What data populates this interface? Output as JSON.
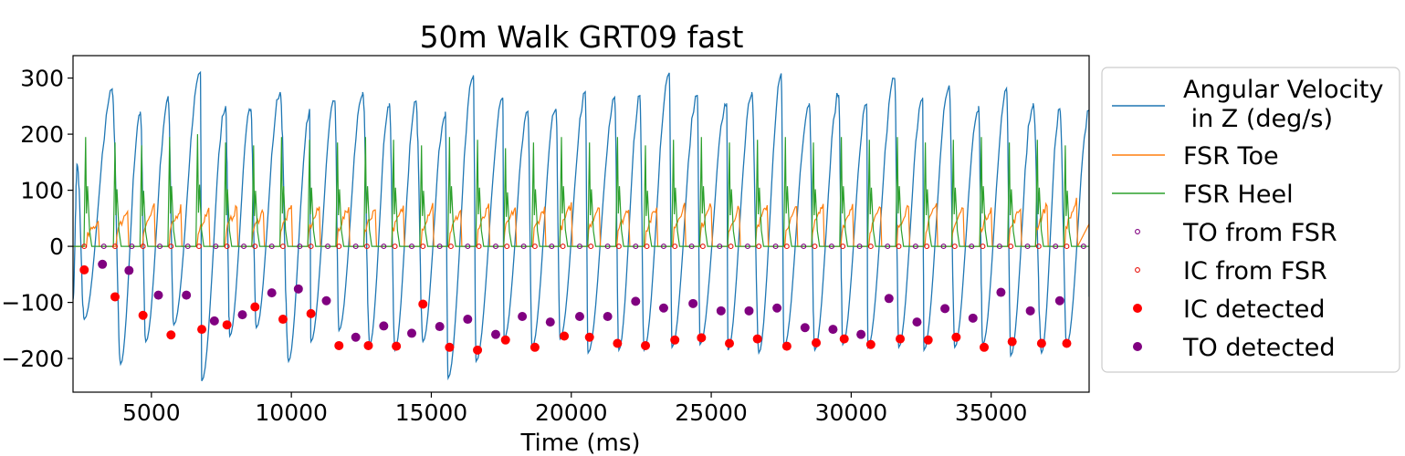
{
  "chart_data": {
    "type": "line",
    "title": "50m Walk GRT09 fast",
    "xlabel": "Time (ms)",
    "ylabel": "",
    "xlim": [
      2200,
      38500
    ],
    "ylim": [
      -260,
      340
    ],
    "xticks": [
      5000,
      10000,
      15000,
      20000,
      25000,
      30000,
      35000
    ],
    "xtick_labels": [
      "5000",
      "10000",
      "15000",
      "20000",
      "25000",
      "30000",
      "35000"
    ],
    "yticks": [
      -200,
      -100,
      0,
      100,
      200,
      300
    ],
    "ytick_labels": [
      "−200",
      "−100",
      "0",
      "100",
      "200",
      "300"
    ],
    "grid": false,
    "legend": {
      "placement": "outside-right",
      "entries": [
        "Angular Velocity\n in Z (deg/s)",
        "FSR Toe",
        "FSR Heel",
        "TO from FSR",
        "IC from FSR",
        "IC detected",
        "TO detected"
      ]
    },
    "series": [
      {
        "name": "Angular Velocity\n in Z (deg/s)",
        "kind": "line",
        "color": "#1f77b4",
        "peaks_x": [
          2350,
          3600,
          4600,
          5600,
          6750,
          7650,
          8550,
          9600,
          10650,
          11550,
          12550,
          13500,
          14450,
          15500,
          16500,
          17550,
          18450,
          19450,
          20500,
          21550,
          22450,
          23500,
          24500,
          25550,
          26450,
          27500,
          28500,
          29550,
          30550,
          31550,
          32550,
          33500,
          34550,
          35550,
          36500,
          37450,
          38500
        ],
        "peaks_y": [
          145,
          275,
          240,
          260,
          310,
          250,
          245,
          275,
          240,
          260,
          275,
          255,
          260,
          240,
          305,
          265,
          235,
          245,
          270,
          260,
          265,
          305,
          270,
          255,
          275,
          300,
          255,
          270,
          250,
          300,
          265,
          285,
          250,
          280,
          255,
          245,
          240
        ],
        "troughs_x": [
          2600,
          3900,
          4800,
          5800,
          6800,
          7800,
          8750,
          9900,
          10700,
          11700,
          12800,
          13700,
          14700,
          15600,
          16600,
          17600,
          18600,
          19600,
          20600,
          21700,
          22600,
          23600,
          24600,
          25600,
          26700,
          27600,
          28700,
          29700,
          30600,
          31700,
          32600,
          33700,
          34700,
          35700,
          36800,
          37700
        ],
        "troughs_y": [
          -130,
          -210,
          -170,
          -140,
          -240,
          -160,
          -145,
          -205,
          -170,
          -150,
          -175,
          -185,
          -170,
          -235,
          -205,
          -165,
          -180,
          -165,
          -190,
          -185,
          -185,
          -180,
          -175,
          -185,
          -190,
          -180,
          -185,
          -175,
          -180,
          -180,
          -185,
          -180,
          -175,
          -195,
          -190,
          -175
        ]
      },
      {
        "name": "FSR Toe",
        "kind": "line",
        "color": "#ff7f0e",
        "peaks_x": [
          3100,
          4150,
          5100,
          6050,
          7050,
          8050,
          9000,
          10000,
          11000,
          12050,
          13000,
          14000,
          15050,
          16050,
          17050,
          18000,
          19050,
          20000,
          21000,
          22050,
          23050,
          24050,
          25000,
          26000,
          27000,
          28050,
          29000,
          30050,
          31050,
          32050,
          33050,
          34000,
          35000,
          36050,
          37000,
          38050
        ],
        "peaks_y": [
          45,
          65,
          70,
          70,
          65,
          70,
          65,
          70,
          70,
          70,
          70,
          70,
          75,
          65,
          70,
          70,
          70,
          75,
          75,
          70,
          70,
          75,
          75,
          70,
          75,
          70,
          75,
          75,
          70,
          75,
          75,
          70,
          70,
          70,
          75,
          80
        ]
      },
      {
        "name": "FSR Heel",
        "kind": "line",
        "color": "#2ca02c",
        "spikes_x": [
          2650,
          3700,
          4650,
          5650,
          6650,
          7650,
          8650,
          9650,
          10650,
          11650,
          12650,
          13650,
          14650,
          15650,
          16650,
          17650,
          18650,
          19650,
          20650,
          21650,
          22650,
          23650,
          24650,
          25650,
          26650,
          27650,
          28650,
          29650,
          30650,
          31650,
          32650,
          33650,
          34650,
          35650,
          36650,
          37650
        ],
        "spikes_y": [
          195,
          185,
          180,
          195,
          200,
          185,
          180,
          195,
          190,
          185,
          195,
          190,
          180,
          195,
          190,
          175,
          185,
          195,
          185,
          195,
          180,
          190,
          195,
          185,
          190,
          195,
          185,
          195,
          190,
          195,
          185,
          190,
          195,
          185,
          190,
          180
        ]
      },
      {
        "name": "TO from FSR",
        "kind": "hollow-marker",
        "color": "#800080",
        "x": [
          3300,
          4300,
          5300,
          6300,
          7300,
          8300,
          9300,
          10300,
          11300,
          12300,
          13300,
          14300,
          15300,
          16300,
          17300,
          18300,
          19300,
          20300,
          21300,
          22300,
          23300,
          24300,
          25300,
          26300,
          27300,
          28300,
          29300,
          30300,
          31300,
          32300,
          33300,
          34300,
          35300,
          36300,
          37300,
          38300
        ],
        "y": [
          0,
          0,
          0,
          0,
          0,
          0,
          0,
          0,
          0,
          0,
          0,
          0,
          0,
          0,
          0,
          0,
          0,
          0,
          0,
          0,
          0,
          0,
          0,
          0,
          0,
          0,
          0,
          0,
          0,
          0,
          0,
          0,
          0,
          0,
          0,
          0
        ]
      },
      {
        "name": "IC from FSR",
        "kind": "hollow-marker",
        "color": "#e8120c",
        "x": [
          2600,
          3700,
          4700,
          5700,
          6700,
          7700,
          8700,
          9700,
          10700,
          11700,
          12700,
          13700,
          14700,
          15700,
          16700,
          17700,
          18700,
          19700,
          20700,
          21700,
          22700,
          23700,
          24700,
          25700,
          26700,
          27700,
          28700,
          29700,
          30700,
          31700,
          32700,
          33700,
          34700,
          35700,
          36700,
          37700
        ],
        "y": [
          0,
          0,
          0,
          0,
          0,
          0,
          0,
          0,
          0,
          0,
          0,
          0,
          0,
          0,
          0,
          0,
          0,
          0,
          0,
          0,
          0,
          0,
          0,
          0,
          0,
          0,
          0,
          0,
          0,
          0,
          0,
          0,
          0,
          0,
          0,
          0
        ]
      },
      {
        "name": "IC detected",
        "kind": "filled-marker",
        "color": "#ff0000",
        "x": [
          2600,
          3700,
          4700,
          5700,
          6800,
          7700,
          8700,
          9700,
          10700,
          11700,
          12750,
          13750,
          14700,
          15650,
          16650,
          17650,
          18700,
          19750,
          20650,
          21650,
          22650,
          23700,
          24650,
          25650,
          26650,
          27700,
          28750,
          29750,
          30700,
          31750,
          32750,
          33750,
          34750,
          35750,
          36800,
          37700
        ],
        "y": [
          -42,
          -90,
          -123,
          -158,
          -148,
          -140,
          -108,
          -130,
          -120,
          -177,
          -177,
          -178,
          -103,
          -180,
          -185,
          -167,
          -180,
          -160,
          -162,
          -173,
          -177,
          -167,
          -163,
          -173,
          -165,
          -178,
          -172,
          -165,
          -175,
          -165,
          -167,
          -162,
          -180,
          -170,
          -173,
          -173
        ]
      },
      {
        "name": "TO detected",
        "kind": "filled-marker",
        "color": "#800080",
        "x": [
          3250,
          4200,
          5250,
          6250,
          7250,
          8250,
          9300,
          10250,
          11250,
          12300,
          13300,
          14300,
          15300,
          16300,
          17300,
          18250,
          19250,
          20300,
          21300,
          22300,
          23300,
          24350,
          25350,
          26350,
          27350,
          28350,
          29350,
          30350,
          31350,
          32350,
          33350,
          34350,
          35350,
          36400,
          37450
        ],
        "y": [
          -32,
          -43,
          -87,
          -87,
          -133,
          -122,
          -83,
          -76,
          -97,
          -162,
          -142,
          -155,
          -143,
          -130,
          -157,
          -125,
          -135,
          -125,
          -125,
          -98,
          -110,
          -102,
          -115,
          -115,
          -110,
          -145,
          -148,
          -157,
          -93,
          -135,
          -111,
          -128,
          -82,
          -115,
          -97
        ]
      }
    ]
  }
}
